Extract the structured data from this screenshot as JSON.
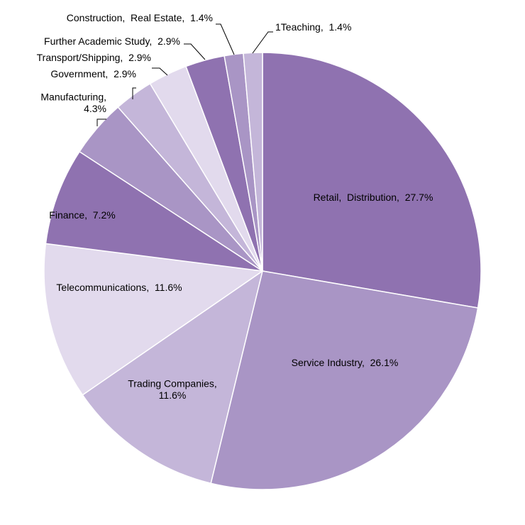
{
  "chart_data": {
    "type": "pie",
    "slices": [
      {
        "label": "Retail, Distribution",
        "value": 27.7,
        "text": "Retail,  Distribution,  27.7%",
        "color": "#8f72b0"
      },
      {
        "label": "Service Industry",
        "value": 26.1,
        "text": "Service Industry,  26.1%",
        "color": "#a995c5"
      },
      {
        "label": "Trading Companies",
        "value": 11.6,
        "text": "Trading Companies,|11.6%",
        "color": "#c4b6d9"
      },
      {
        "label": "Telecommunications",
        "value": 11.6,
        "text": "Telecommunications,  11.6%",
        "color": "#e2daed"
      },
      {
        "label": "Finance",
        "value": 7.2,
        "text": "Finance,  7.2%",
        "color": "#8f72b0"
      },
      {
        "label": "Manufacturing",
        "value": 4.3,
        "text": "Manufacturing,|4.3%",
        "color": "#a995c5"
      },
      {
        "label": "Government",
        "value": 2.9,
        "text": "Government,  2.9%",
        "color": "#c4b6d9"
      },
      {
        "label": "Transport/Shipping",
        "value": 2.9,
        "text": "Transport/Shipping,  2.9%",
        "color": "#e2daed"
      },
      {
        "label": "Further Academic Study",
        "value": 2.9,
        "text": "Further Academic Study,  2.9%",
        "color": "#8f72b0"
      },
      {
        "label": "Construction, Real Estate",
        "value": 1.4,
        "text": "Construction,  Real Estate,  1.4%",
        "color": "#a995c5"
      },
      {
        "label": "1Teaching",
        "value": 1.4,
        "text": "1Teaching,  1.4%",
        "color": "#c4b6d9"
      }
    ]
  }
}
